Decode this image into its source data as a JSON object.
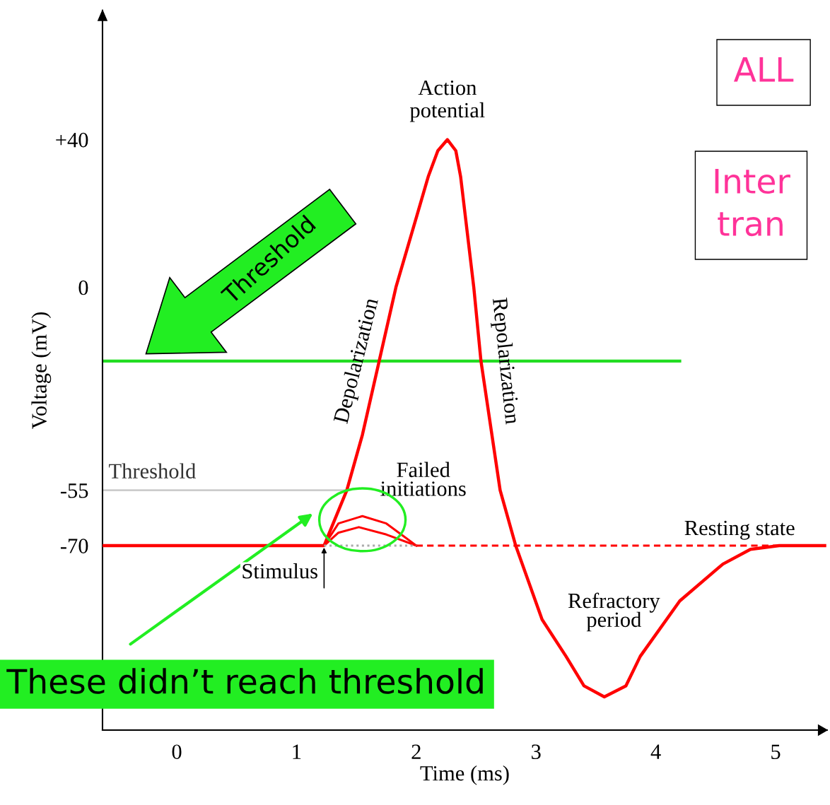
{
  "chart_data": {
    "type": "line",
    "xlabel": "Time (ms)",
    "ylabel": "Voltage (mV)",
    "xlim": [
      -0.62,
      5.43
    ],
    "ylim": [
      -120,
      75
    ],
    "xticks": [
      0,
      1,
      2,
      3,
      4,
      5
    ],
    "yticks": [
      {
        "value": 40,
        "label": "+40"
      },
      0,
      -55,
      -70
    ],
    "grid": false,
    "legend": false,
    "marker": "none",
    "series": [
      {
        "color": "#ff0000",
        "line_style": "solid",
        "x": [
          -0.62,
          1.23,
          1.42,
          1.55,
          1.69,
          1.83,
          2.01,
          2.1,
          2.18,
          2.26,
          2.33,
          2.37,
          2.48,
          2.54,
          2.7,
          2.83,
          3.05,
          3.25,
          3.4,
          3.57,
          3.75,
          3.87,
          4.2,
          4.56,
          4.79,
          5.03,
          5.41
        ],
        "values": [
          -70,
          -70,
          -55,
          -40,
          -20,
          0,
          20,
          30,
          37,
          40,
          37,
          30,
          0,
          -20,
          -55,
          -70,
          -90,
          -100,
          -108,
          -111,
          -108,
          -100,
          -85,
          -75,
          -71,
          -70,
          -70
        ]
      },
      {
        "color": "#ff0000",
        "line_style": "solid",
        "x": [
          1.23,
          1.35,
          1.55,
          1.75,
          2.0
        ],
        "values": [
          -70,
          -64,
          -62,
          -64,
          -70
        ]
      },
      {
        "color": "#ff0000",
        "line_style": "solid",
        "x": [
          1.23,
          1.35,
          1.52,
          1.75,
          2.0
        ],
        "values": [
          -70,
          -66.5,
          -65,
          -67,
          -70
        ]
      },
      {
        "color": "#aaaaaa",
        "line_style": "dotted",
        "x": [
          1.23,
          2.0
        ],
        "values": [
          -70,
          -70
        ]
      },
      {
        "color": "#ff0000",
        "line_style": "dashed",
        "x": [
          2.0,
          5.41
        ],
        "values": [
          -70,
          -70
        ]
      }
    ],
    "ref_lines": [
      {
        "axis": "y",
        "value": -55,
        "label": "Threshold",
        "color": "#cccccc",
        "line_style": "solid"
      },
      {
        "axis": "y",
        "value": -20,
        "label": "Threshold",
        "color": "#22dd22",
        "line_style": "solid"
      }
    ],
    "annotations": [
      {
        "text": "Action\npotential",
        "x": 2.26,
        "y": 40
      },
      {
        "text": "Depolarization",
        "x": 1.69,
        "y": -20
      },
      {
        "text": "Repolarization",
        "x": 2.54,
        "y": -20
      },
      {
        "text": "Failed\ninitiations",
        "x": 1.55,
        "y": -62
      },
      {
        "text": "Stimulus",
        "x": 1.23,
        "y": -70
      },
      "Refractory\nperiod",
      {
        "text": "Resting state",
        "x": 4.7,
        "y": -70
      },
      "These didn’t reach threshold",
      "ALL",
      "Inter\ntran"
    ]
  }
}
